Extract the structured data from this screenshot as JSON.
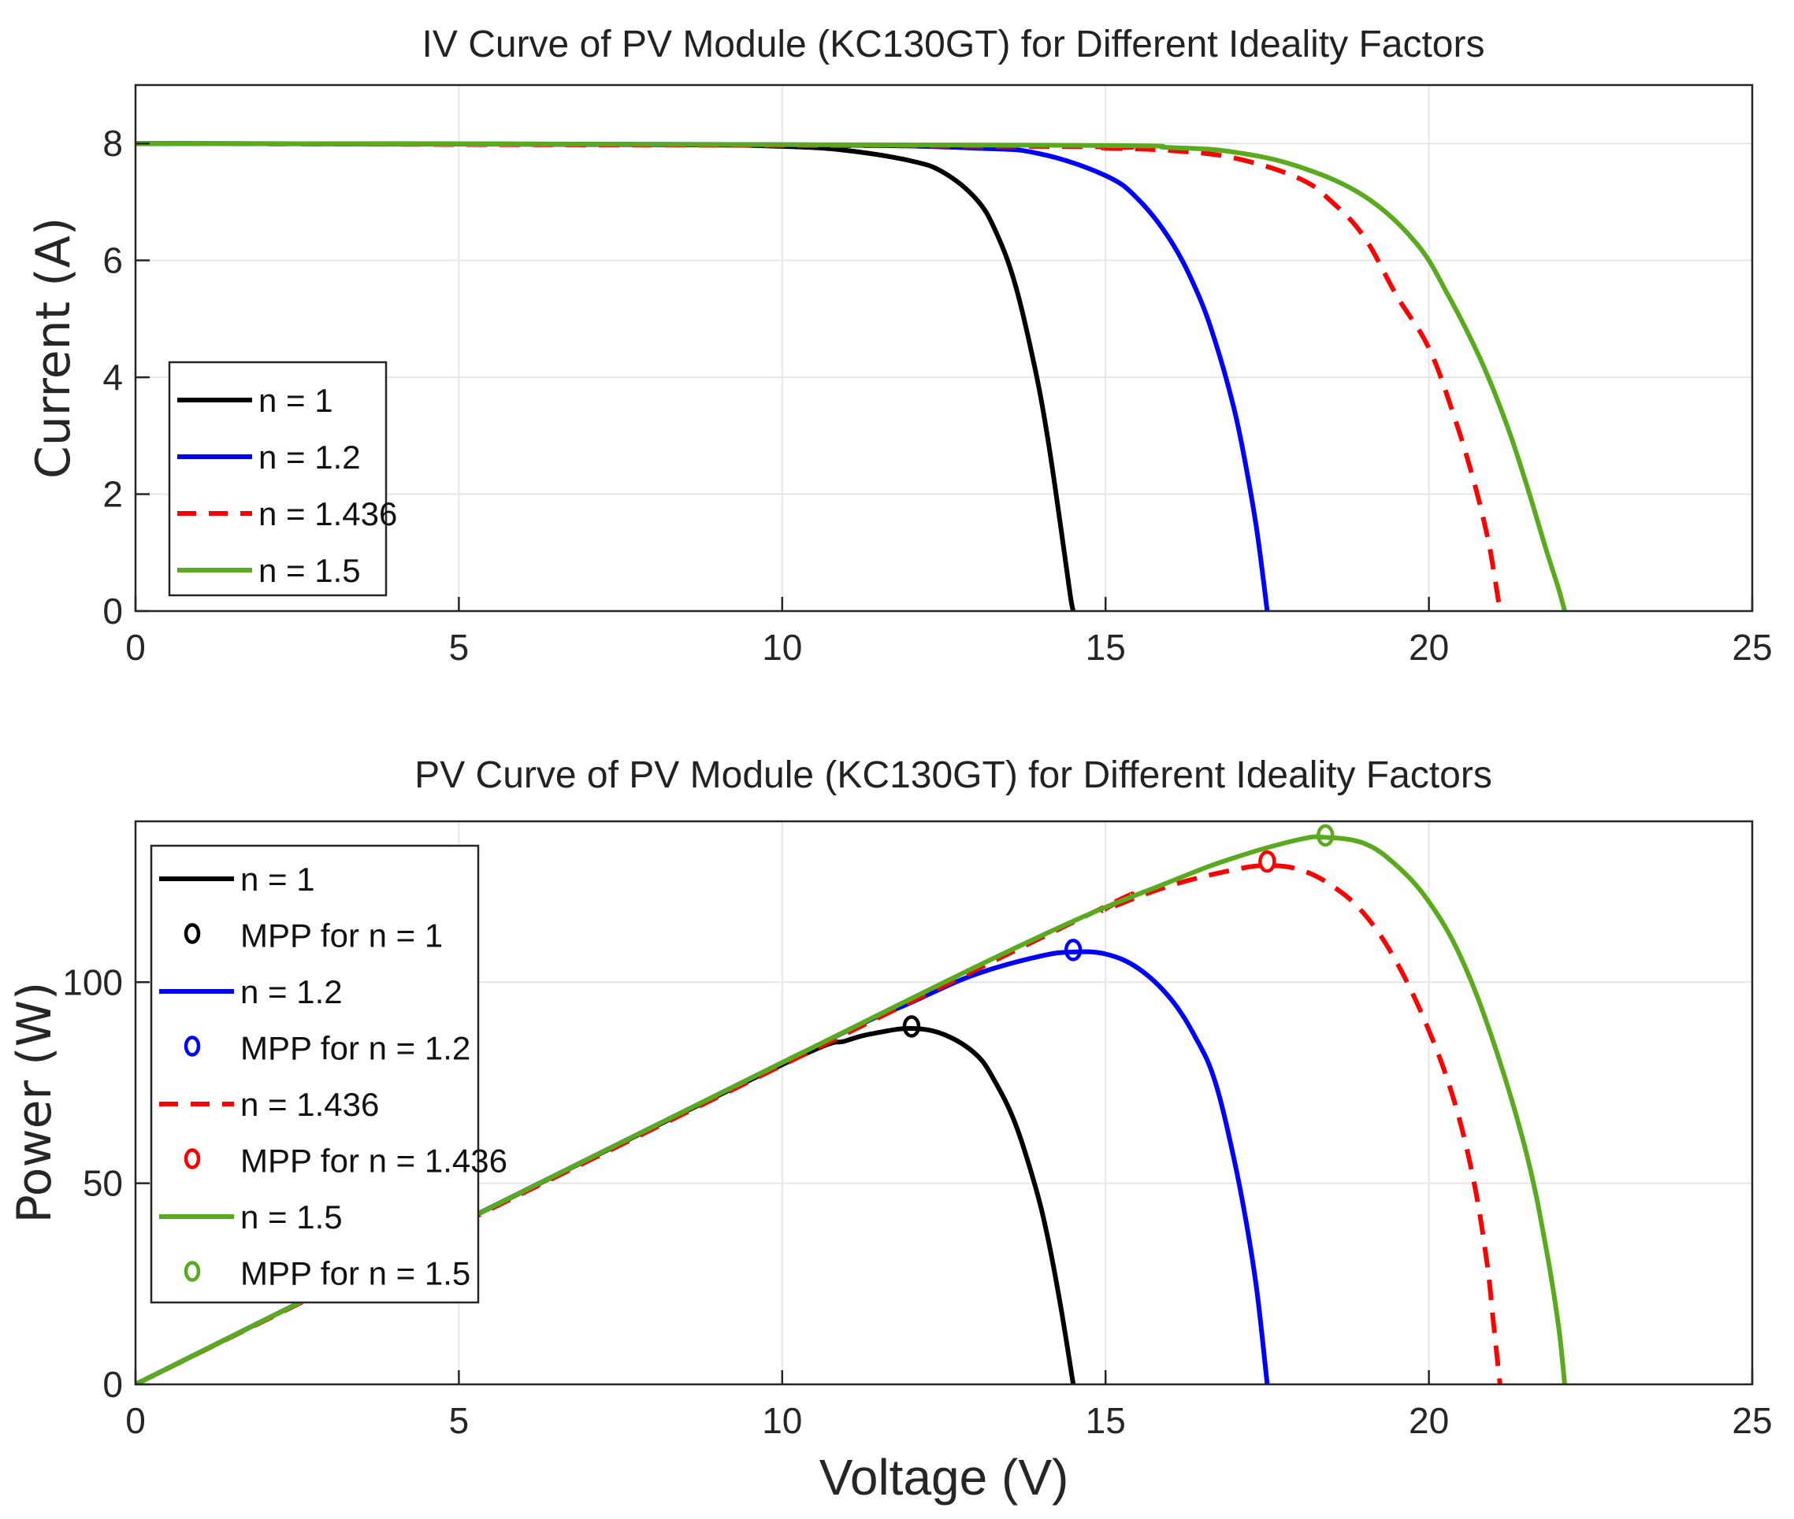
{
  "chart_data": [
    {
      "type": "line",
      "title": "IV Curve of PV Module (KC130GT) for Different Ideality Factors",
      "xlabel": "",
      "ylabel": "Current (A)",
      "xlim": [
        0,
        25
      ],
      "ylim": [
        0,
        9
      ],
      "xticks": [
        0,
        5,
        10,
        15,
        20,
        25
      ],
      "yticks": [
        0,
        2,
        4,
        6,
        8
      ],
      "grid": true,
      "legend_position": "lower-left",
      "series": [
        {
          "name": "n = 1",
          "color": "#000000",
          "dash": "solid",
          "x": [
            0,
            8,
            10,
            11,
            12,
            12.5,
            13,
            13.3,
            13.6,
            13.9,
            14.1,
            14.3,
            14.45,
            14.5
          ],
          "y": [
            8.0,
            7.98,
            7.95,
            7.88,
            7.7,
            7.5,
            7.05,
            6.5,
            5.6,
            4.2,
            3.0,
            1.5,
            0.3,
            0
          ]
        },
        {
          "name": "n = 1.2",
          "color": "#0000ff",
          "dash": "solid",
          "x": [
            0,
            10,
            13,
            14,
            15,
            15.5,
            16,
            16.4,
            16.7,
            17.0,
            17.2,
            17.35,
            17.5
          ],
          "y": [
            8.0,
            7.98,
            7.92,
            7.82,
            7.45,
            7.05,
            6.35,
            5.5,
            4.6,
            3.4,
            2.3,
            1.3,
            0
          ]
        },
        {
          "name": "n = 1.436",
          "color": "#ff0000",
          "dash": "dashed",
          "x": [
            0,
            14,
            15,
            16,
            17,
            18,
            18.5,
            19,
            19.5,
            20,
            20.4,
            20.7,
            20.9,
            21.0,
            21.1
          ],
          "y": [
            8.0,
            7.95,
            7.92,
            7.88,
            7.75,
            7.4,
            7.0,
            6.4,
            5.4,
            4.5,
            3.3,
            2.2,
            1.3,
            0.7,
            0
          ]
        },
        {
          "name": "n = 1.5",
          "color": "#5aaa1e",
          "dash": "solid",
          "x": [
            0,
            14,
            16,
            17,
            18,
            19,
            19.8,
            20.3,
            20.8,
            21.2,
            21.5,
            21.8,
            22.0,
            22.1
          ],
          "y": [
            8.0,
            7.97,
            7.93,
            7.85,
            7.6,
            7.1,
            6.3,
            5.4,
            4.3,
            3.2,
            2.2,
            1.1,
            0.4,
            0
          ]
        }
      ]
    },
    {
      "type": "line",
      "title": "PV Curve of PV Module (KC130GT) for Different Ideality Factors",
      "xlabel": "Voltage (V)",
      "ylabel": "Power (W)",
      "xlim": [
        0,
        25
      ],
      "ylim": [
        0,
        140
      ],
      "xticks": [
        0,
        5,
        10,
        15,
        20,
        25
      ],
      "yticks": [
        0,
        50,
        100
      ],
      "grid": true,
      "legend_position": "lower-left",
      "series": [
        {
          "name": "n = 1",
          "color": "#000000",
          "dash": "solid",
          "x": [
            0,
            5,
            10,
            11,
            11.5,
            12,
            12.5,
            13,
            13.3,
            13.6,
            13.9,
            14.1,
            14.3,
            14.5
          ],
          "y": [
            0,
            40,
            79.5,
            85.5,
            87.5,
            88.5,
            87,
            82,
            75,
            65,
            50,
            37,
            20,
            0
          ]
        },
        {
          "name": "MPP for n = 1",
          "color": "#000000",
          "marker": true,
          "x": [
            12.0
          ],
          "y": [
            89.0
          ]
        },
        {
          "name": "n = 1.2",
          "color": "#0000ff",
          "dash": "solid",
          "x": [
            0,
            10,
            12,
            13,
            14,
            14.5,
            15,
            15.5,
            16,
            16.4,
            16.7,
            17.0,
            17.2,
            17.35,
            17.5
          ],
          "y": [
            0,
            80,
            95,
            102,
            106.5,
            107.5,
            107,
            103.5,
            96,
            86,
            75,
            55,
            38,
            22,
            0
          ]
        },
        {
          "name": "MPP for n = 1.2",
          "color": "#0000ff",
          "marker": true,
          "x": [
            14.5
          ],
          "y": [
            108.0
          ]
        },
        {
          "name": "n = 1.436",
          "color": "#ff0000",
          "dash": "dashed",
          "x": [
            0,
            14,
            15,
            16,
            17,
            17.5,
            18,
            18.5,
            19,
            19.5,
            20,
            20.4,
            20.7,
            20.9,
            21.0,
            21.1
          ],
          "y": [
            0,
            111,
            118,
            124,
            128,
            129,
            128,
            124,
            117,
            105,
            88,
            70,
            50,
            30,
            15,
            0
          ]
        },
        {
          "name": "MPP for n = 1.436",
          "color": "#ff0000",
          "marker": true,
          "x": [
            17.5
          ],
          "y": [
            130.0
          ]
        },
        {
          "name": "n = 1.5",
          "color": "#5aaa1e",
          "dash": "solid",
          "x": [
            0,
            10,
            14,
            16,
            17,
            18,
            18.4,
            19,
            19.5,
            20,
            20.5,
            21,
            21.5,
            21.8,
            22.0,
            22.1
          ],
          "y": [
            0,
            80,
            111.5,
            125,
            131,
            135.5,
            136,
            134.5,
            129,
            120,
            106,
            85,
            58,
            35,
            15,
            0
          ]
        },
        {
          "name": "MPP for n = 1.5",
          "color": "#5aaa1e",
          "marker": true,
          "x": [
            18.4
          ],
          "y": [
            136.5
          ]
        }
      ]
    }
  ]
}
